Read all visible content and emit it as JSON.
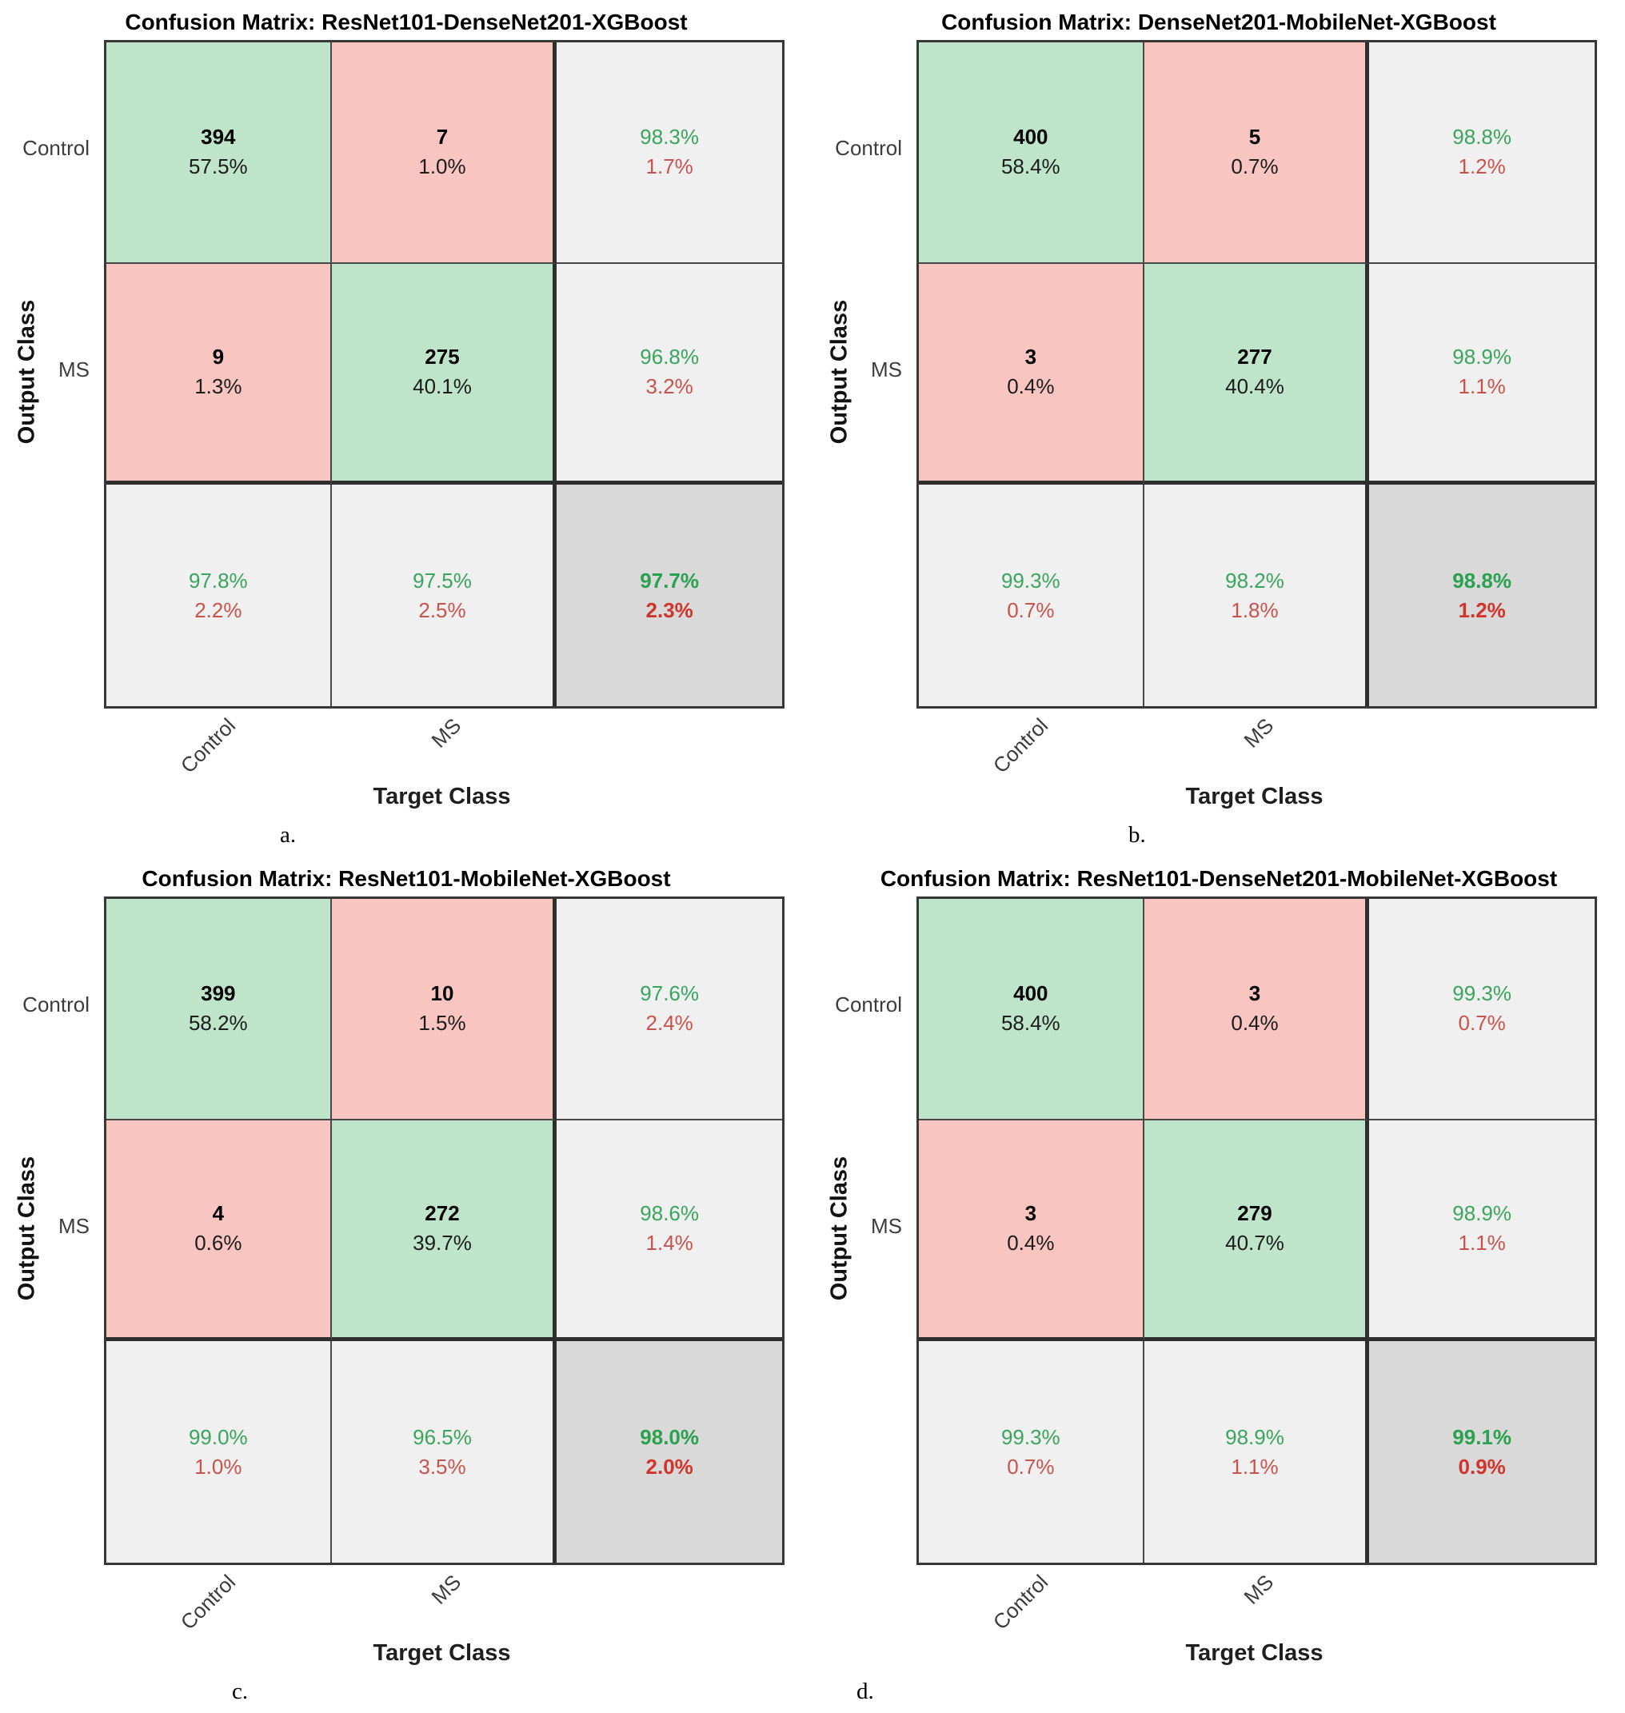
{
  "figure": {
    "xlabel": "Target Class",
    "ylabel": "Output Class",
    "classes": [
      "Control",
      "MS"
    ],
    "colors": {
      "diagonal_cell": "#bee5c9",
      "off_diagonal_cell": "#f8c5c0",
      "summary_cell": "#f0f0f0",
      "overall_cell": "#d9d9d9",
      "positive_text": "#3aa55c",
      "negative_text": "#c8534c"
    }
  },
  "matrices": [
    {
      "caption": "a.",
      "title": "Confusion Matrix: ResNet101-DenseNet201-XGBoost",
      "cells": [
        {
          "l1": "394",
          "l2": "57.5%"
        },
        {
          "l1": "7",
          "l2": "1.0%"
        },
        {
          "l1": "98.3%",
          "l2": "1.7%"
        },
        {
          "l1": "9",
          "l2": "1.3%"
        },
        {
          "l1": "275",
          "l2": "40.1%"
        },
        {
          "l1": "96.8%",
          "l2": "3.2%"
        },
        {
          "l1": "97.8%",
          "l2": "2.2%"
        },
        {
          "l1": "97.5%",
          "l2": "2.5%"
        },
        {
          "l1": "97.7%",
          "l2": "2.3%"
        }
      ]
    },
    {
      "caption": "b.",
      "title": "Confusion Matrix: DenseNet201-MobileNet-XGBoost",
      "cells": [
        {
          "l1": "400",
          "l2": "58.4%"
        },
        {
          "l1": "5",
          "l2": "0.7%"
        },
        {
          "l1": "98.8%",
          "l2": "1.2%"
        },
        {
          "l1": "3",
          "l2": "0.4%"
        },
        {
          "l1": "277",
          "l2": "40.4%"
        },
        {
          "l1": "98.9%",
          "l2": "1.1%"
        },
        {
          "l1": "99.3%",
          "l2": "0.7%"
        },
        {
          "l1": "98.2%",
          "l2": "1.8%"
        },
        {
          "l1": "98.8%",
          "l2": "1.2%"
        }
      ]
    },
    {
      "caption": "c.",
      "title": "Confusion Matrix: ResNet101-MobileNet-XGBoost",
      "cells": [
        {
          "l1": "399",
          "l2": "58.2%"
        },
        {
          "l1": "10",
          "l2": "1.5%"
        },
        {
          "l1": "97.6%",
          "l2": "2.4%"
        },
        {
          "l1": "4",
          "l2": "0.6%"
        },
        {
          "l1": "272",
          "l2": "39.7%"
        },
        {
          "l1": "98.6%",
          "l2": "1.4%"
        },
        {
          "l1": "99.0%",
          "l2": "1.0%"
        },
        {
          "l1": "96.5%",
          "l2": "3.5%"
        },
        {
          "l1": "98.0%",
          "l2": "2.0%"
        }
      ]
    },
    {
      "caption": "d.",
      "title": "Confusion Matrix: ResNet101-DenseNet201-MobileNet-XGBoost",
      "cells": [
        {
          "l1": "400",
          "l2": "58.4%"
        },
        {
          "l1": "3",
          "l2": "0.4%"
        },
        {
          "l1": "99.3%",
          "l2": "0.7%"
        },
        {
          "l1": "3",
          "l2": "0.4%"
        },
        {
          "l1": "279",
          "l2": "40.7%"
        },
        {
          "l1": "98.9%",
          "l2": "1.1%"
        },
        {
          "l1": "99.3%",
          "l2": "0.7%"
        },
        {
          "l1": "98.9%",
          "l2": "1.1%"
        },
        {
          "l1": "99.1%",
          "l2": "0.9%"
        }
      ]
    }
  ],
  "chart_data": [
    {
      "type": "heatmap",
      "title": "Confusion Matrix: ResNet101-DenseNet201-XGBoost",
      "xlabel": "Target Class",
      "ylabel": "Output Class",
      "classes": [
        "Control",
        "MS"
      ],
      "counts": [
        [
          394,
          7
        ],
        [
          9,
          275
        ]
      ],
      "percent_of_total": [
        [
          "57.5%",
          "1.0%"
        ],
        [
          "1.3%",
          "40.1%"
        ]
      ],
      "row_summary_pct": [
        [
          "98.3%",
          "1.7%"
        ],
        [
          "96.8%",
          "3.2%"
        ]
      ],
      "col_summary_pct": [
        [
          "97.8%",
          "2.2%"
        ],
        [
          "97.5%",
          "2.5%"
        ]
      ],
      "overall_pct": [
        "97.7%",
        "2.3%"
      ],
      "caption": "a."
    },
    {
      "type": "heatmap",
      "title": "Confusion Matrix: DenseNet201-MobileNet-XGBoost",
      "xlabel": "Target Class",
      "ylabel": "Output Class",
      "classes": [
        "Control",
        "MS"
      ],
      "counts": [
        [
          400,
          5
        ],
        [
          3,
          277
        ]
      ],
      "percent_of_total": [
        [
          "58.4%",
          "0.7%"
        ],
        [
          "0.4%",
          "40.4%"
        ]
      ],
      "row_summary_pct": [
        [
          "98.8%",
          "1.2%"
        ],
        [
          "98.9%",
          "1.1%"
        ]
      ],
      "col_summary_pct": [
        [
          "99.3%",
          "0.7%"
        ],
        [
          "98.2%",
          "1.8%"
        ]
      ],
      "overall_pct": [
        "98.8%",
        "1.2%"
      ],
      "caption": "b."
    },
    {
      "type": "heatmap",
      "title": "Confusion Matrix: ResNet101-MobileNet-XGBoost",
      "xlabel": "Target Class",
      "ylabel": "Output Class",
      "classes": [
        "Control",
        "MS"
      ],
      "counts": [
        [
          399,
          10
        ],
        [
          4,
          272
        ]
      ],
      "percent_of_total": [
        [
          "58.2%",
          "1.5%"
        ],
        [
          "0.6%",
          "39.7%"
        ]
      ],
      "row_summary_pct": [
        [
          "97.6%",
          "2.4%"
        ],
        [
          "98.6%",
          "1.4%"
        ]
      ],
      "col_summary_pct": [
        [
          "99.0%",
          "1.0%"
        ],
        [
          "96.5%",
          "3.5%"
        ]
      ],
      "overall_pct": [
        "98.0%",
        "2.0%"
      ],
      "caption": "c."
    },
    {
      "type": "heatmap",
      "title": "Confusion Matrix: ResNet101-DenseNet201-MobileNet-XGBoost",
      "xlabel": "Target Class",
      "ylabel": "Output Class",
      "classes": [
        "Control",
        "MS"
      ],
      "counts": [
        [
          400,
          3
        ],
        [
          3,
          279
        ]
      ],
      "percent_of_total": [
        [
          "58.4%",
          "0.4%"
        ],
        [
          "0.4%",
          "40.7%"
        ]
      ],
      "row_summary_pct": [
        [
          "99.3%",
          "0.7%"
        ],
        [
          "98.9%",
          "1.1%"
        ]
      ],
      "col_summary_pct": [
        [
          "99.3%",
          "0.7%"
        ],
        [
          "98.9%",
          "1.1%"
        ]
      ],
      "overall_pct": [
        "99.1%",
        "0.9%"
      ],
      "caption": "d."
    }
  ]
}
